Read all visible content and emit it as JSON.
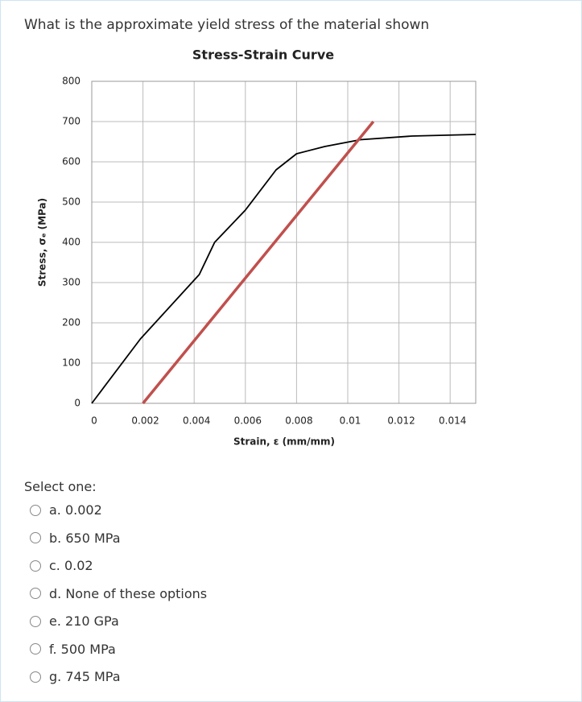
{
  "question": "What is the approximate yield stress of the material shown",
  "chart_data": {
    "type": "line",
    "title": "Stress-Strain Curve",
    "x_label": "Strain, ε (mm/mm)",
    "y_label": "Stress, σₑ (MPa)",
    "xlim": [
      0,
      0.015
    ],
    "ylim": [
      0,
      800
    ],
    "xticks": [
      0,
      0.002,
      0.004,
      0.006,
      0.008,
      0.01,
      0.012,
      0.014
    ],
    "yticks": [
      0,
      100,
      200,
      300,
      400,
      500,
      600,
      700,
      800
    ],
    "grid": true,
    "series": [
      {
        "color": "#000000",
        "x": [
          0,
          0.0019,
          0.0042,
          0.0048,
          0.006,
          0.0072,
          0.008,
          0.0091,
          0.0105,
          0.0125,
          0.015
        ],
        "values": [
          0,
          160,
          320,
          400,
          480,
          580,
          620,
          638,
          655,
          664,
          668
        ]
      },
      {
        "color": "#c0504d",
        "x": [
          0.002,
          0.011
        ],
        "values": [
          0,
          700
        ]
      }
    ]
  },
  "prompt": "Select one:",
  "options": [
    "a. 0.002",
    "b. 650 MPa",
    "c. 0.02",
    "d. None of these options",
    "e. 210 GPa",
    "f. 500 MPa",
    "g. 745 MPa"
  ]
}
